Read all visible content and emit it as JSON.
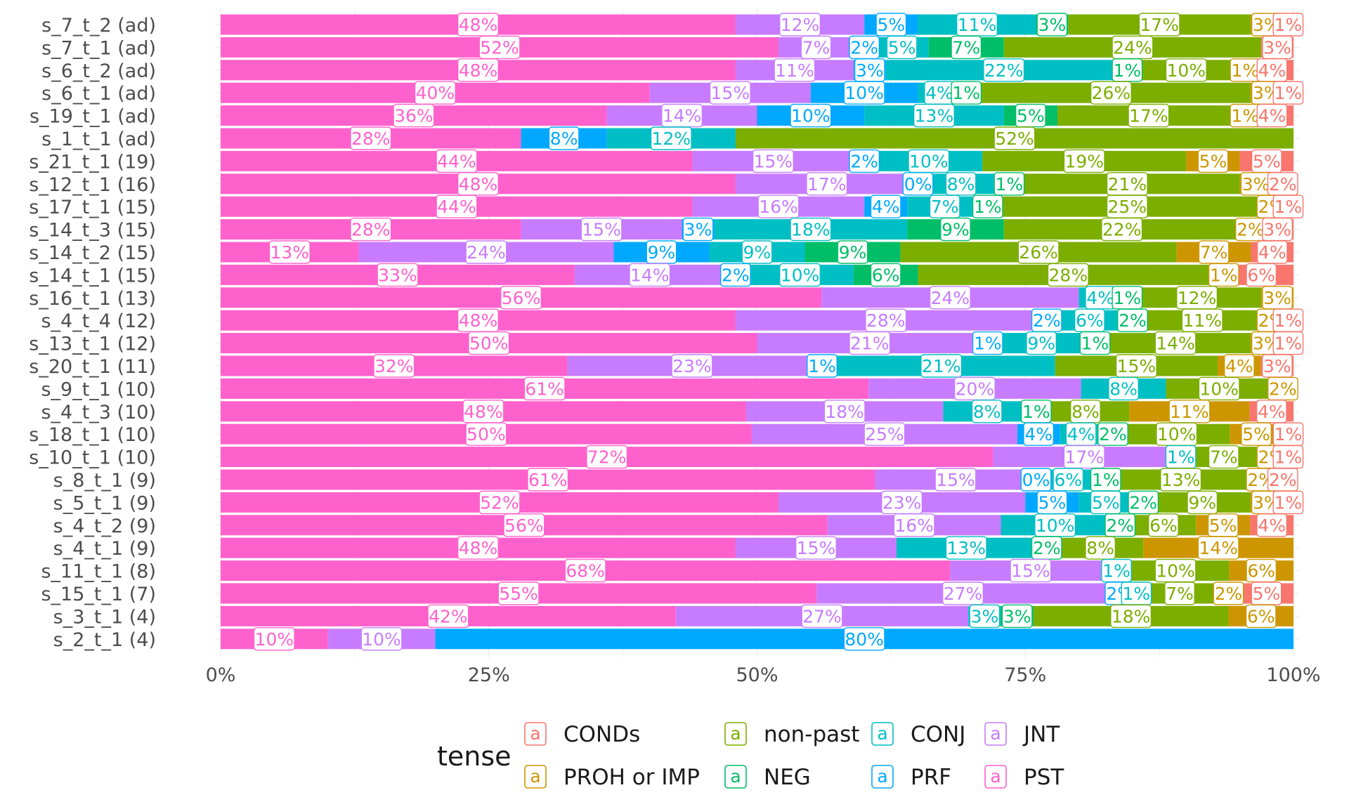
{
  "chart_data": {
    "type": "bar",
    "orientation": "horizontal",
    "stacked": "percent",
    "grid": true,
    "legend_position": "bottom",
    "legend_title": "tense",
    "x_ticks": [
      "0%",
      "25%",
      "50%",
      "75%",
      "100%"
    ],
    "xlim": [
      0,
      100
    ],
    "categories": [
      "s_7_t_2 (ad)",
      "s_7_t_1 (ad)",
      "s_6_t_2 (ad)",
      "s_6_t_1 (ad)",
      "s_19_t_1 (ad)",
      "s_1_t_1 (ad)",
      "s_21_t_1 (19)",
      "s_12_t_1 (16)",
      "s_17_t_1 (15)",
      "s_14_t_3 (15)",
      "s_14_t_2 (15)",
      "s_14_t_1 (15)",
      "s_16_t_1 (13)",
      "s_4_t_4 (12)",
      "s_13_t_1 (12)",
      "s_20_t_1 (11)",
      "s_9_t_1 (10)",
      "s_4_t_3 (10)",
      "s_18_t_1 (10)",
      "s_10_t_1 (10)",
      "s_8_t_1 (9)",
      "s_5_t_1 (9)",
      "s_4_t_2 (9)",
      "s_4_t_1 (9)",
      "s_11_t_1 (8)",
      "s_15_t_1 (7)",
      "s_3_t_1 (4)",
      "s_2_t_1 (4)"
    ],
    "series": [
      {
        "name": "PST",
        "color": "#FF61CC",
        "values": [
          48,
          52,
          48,
          40,
          36,
          28,
          44,
          48,
          44,
          28,
          13,
          33,
          56,
          48,
          50,
          32,
          61,
          48,
          50,
          72,
          61,
          52,
          56,
          48,
          68,
          55,
          42,
          10
        ]
      },
      {
        "name": "JNT",
        "color": "#C77CFF",
        "values": [
          12,
          7,
          11,
          15,
          14,
          0,
          15,
          17,
          16,
          15,
          24,
          14,
          24,
          28,
          21,
          23,
          20,
          18,
          25,
          17,
          15,
          23,
          16,
          15,
          15,
          27,
          27,
          10
        ]
      },
      {
        "name": "PRF",
        "color": "#00A9FF",
        "values": [
          5,
          2,
          3,
          10,
          10,
          8,
          2,
          0,
          4,
          3,
          9,
          2,
          0,
          2,
          1,
          1,
          0,
          0,
          4,
          0,
          0,
          5,
          0,
          0,
          0,
          2,
          0,
          80
        ]
      },
      {
        "name": "CONJ",
        "color": "#00BFC4",
        "values": [
          11,
          5,
          22,
          4,
          13,
          12,
          10,
          8,
          7,
          18,
          9,
          10,
          4,
          6,
          9,
          21,
          8,
          8,
          4,
          1,
          6,
          5,
          10,
          13,
          1,
          1,
          3,
          0
        ]
      },
      {
        "name": "NEG",
        "color": "#00BE67",
        "values": [
          3,
          7,
          1,
          1,
          5,
          0,
          0,
          1,
          1,
          9,
          9,
          6,
          1,
          2,
          1,
          0,
          0,
          1,
          2,
          0,
          1,
          2,
          2,
          2,
          0,
          0,
          3,
          0
        ]
      },
      {
        "name": "non-past",
        "color": "#7CAE00",
        "values": [
          17,
          24,
          10,
          26,
          17,
          52,
          19,
          21,
          25,
          22,
          26,
          28,
          12,
          11,
          14,
          15,
          10,
          8,
          10,
          7,
          13,
          9,
          6,
          8,
          10,
          7,
          18,
          0
        ]
      },
      {
        "name": "PROH or IMP",
        "color": "#CD9600",
        "values": [
          3,
          0,
          1,
          3,
          1,
          0,
          5,
          3,
          2,
          2,
          7,
          1,
          3,
          2,
          3,
          4,
          2,
          11,
          5,
          2,
          2,
          3,
          5,
          14,
          6,
          2,
          6,
          0
        ]
      },
      {
        "name": "CONDs",
        "color": "#F8766D",
        "values": [
          1,
          3,
          4,
          1,
          4,
          0,
          5,
          2,
          1,
          3,
          4,
          6,
          0,
          1,
          1,
          3,
          0,
          4,
          1,
          1,
          2,
          1,
          4,
          0,
          0,
          5,
          0,
          0
        ]
      }
    ],
    "legend_order": [
      "CONDs",
      "PROH or IMP",
      "non-past",
      "NEG",
      "CONJ",
      "PRF",
      "JNT",
      "PST"
    ]
  }
}
